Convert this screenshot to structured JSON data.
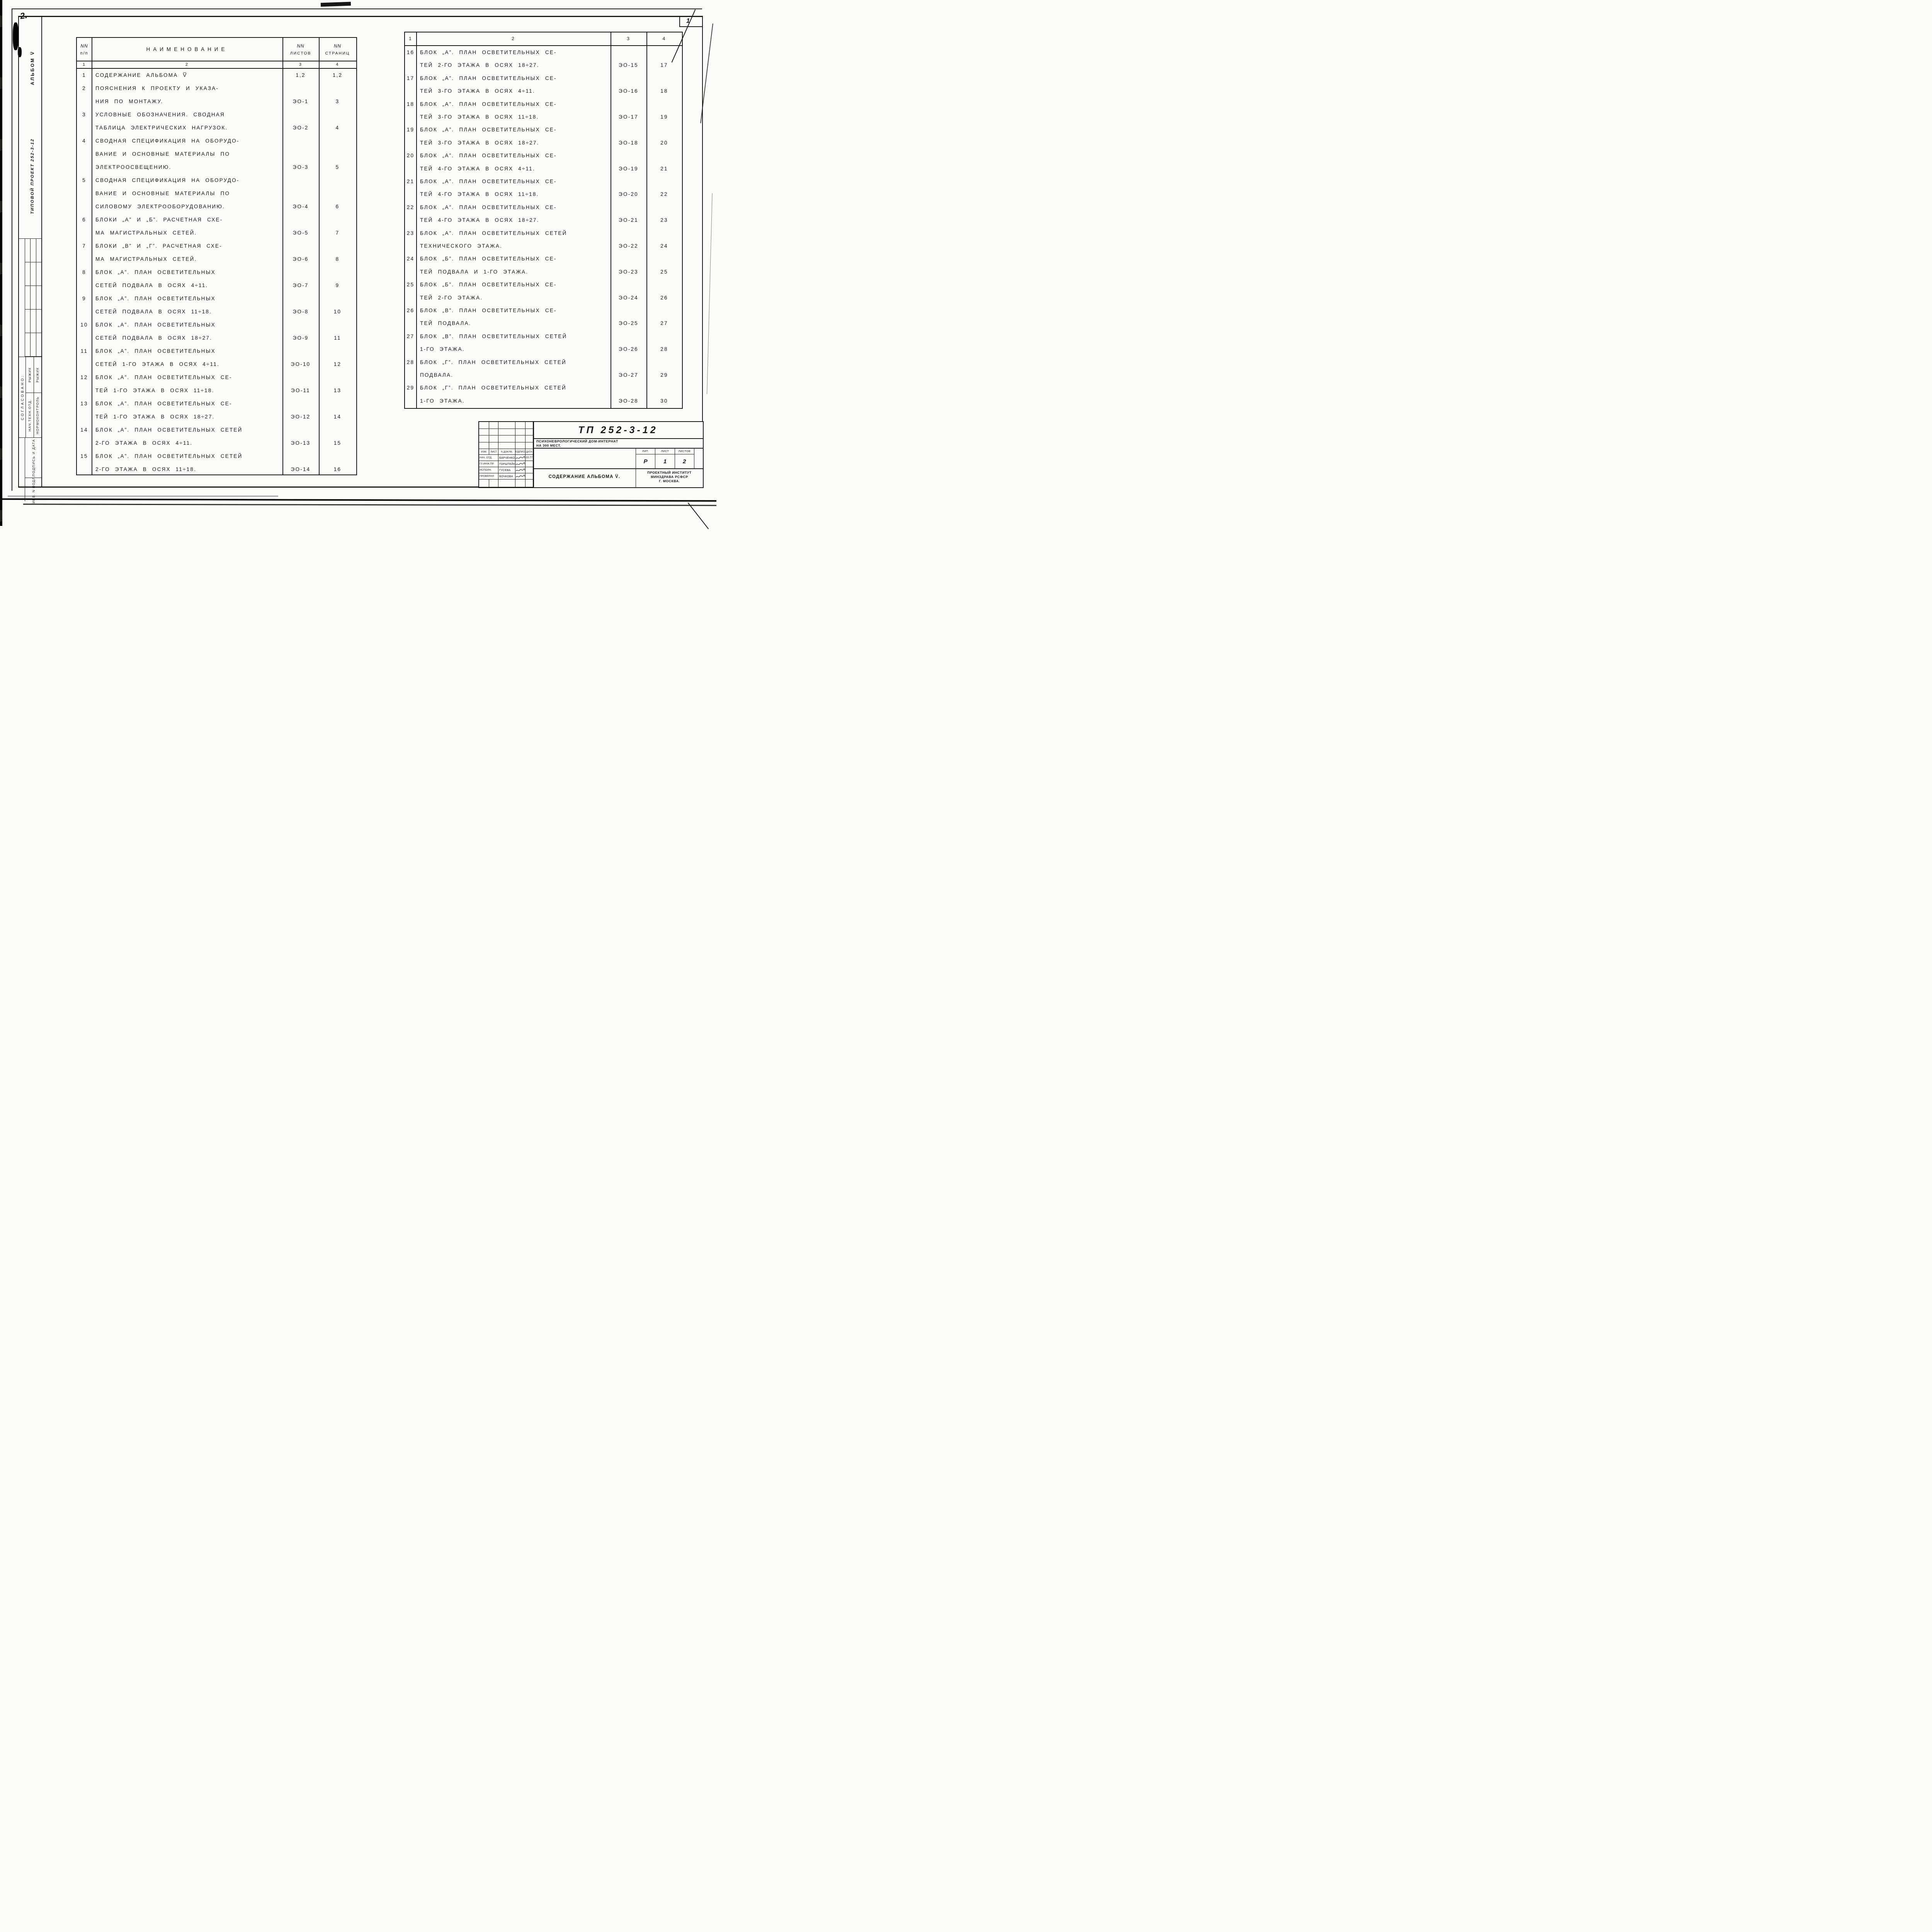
{
  "sheet": {
    "page_number_top_right": "1",
    "handwritten_mark_top_left": "2."
  },
  "sidebar": {
    "album_label": "АЛЬБОМ V̅",
    "project_label": "ТИПОВОЙ ПРОЕКТ 252-3-12",
    "agreed_label": "СОГЛАСОВАНО:",
    "approvals": [
      {
        "role": "НАЧ.ТЕХН.ОТД.",
        "name": "РЫЖИК"
      },
      {
        "role": "НОРМОКОНТРОЛЬ",
        "name": "РЫЖИК"
      }
    ],
    "signature_date_label": "ПОДПИСЬ И ДАТА",
    "inventory_label": "ИНВ. N ПОДЛ."
  },
  "toc": {
    "col_headers": {
      "num_line1": "NN",
      "num_line2": "п/п",
      "name": "НАИМЕНОВАНИЕ",
      "sheets_line1": "NN",
      "sheets_line2": "ЛИСТОВ",
      "pages_line1": "NN",
      "pages_line2": "СТРАНИЦ"
    },
    "col_numbers": [
      "1",
      "2",
      "3",
      "4"
    ],
    "left_rows": [
      {
        "num": "1",
        "lines": [
          "СОДЕРЖАНИЕ АЛЬБОМА  V̅"
        ],
        "sheet": "1,2",
        "page": "1,2"
      },
      {
        "num": "2",
        "lines": [
          "ПОЯСНЕНИЯ К ПРОЕКТУ И УКАЗА-",
          "НИЯ ПО МОНТАЖУ."
        ],
        "sheet": "ЭО-1",
        "page": "3"
      },
      {
        "num": "3",
        "lines": [
          "УСЛОВНЫЕ ОБОЗНАЧЕНИЯ. СВОДНАЯ",
          "ТАБЛИЦА ЭЛЕКТРИЧЕСКИХ НАГРУЗОК."
        ],
        "sheet": "ЭО-2",
        "page": "4"
      },
      {
        "num": "4",
        "lines": [
          "СВОДНАЯ СПЕЦИФИКАЦИЯ НА ОБОРУДО-",
          "ВАНИЕ И ОСНОВНЫЕ МАТЕРИАЛЫ ПО",
          "ЭЛЕКТРООСВЕЩЕНИЮ."
        ],
        "sheet": "ЭО-3",
        "page": "5"
      },
      {
        "num": "5",
        "lines": [
          "СВОДНАЯ СПЕЦИФИКАЦИЯ НА ОБОРУДО-",
          "ВАНИЕ И ОСНОВНЫЕ МАТЕРИАЛЫ ПО",
          "СИЛОВОМУ ЭЛЕКТРООБОРУДОВАНИЮ."
        ],
        "sheet": "ЭО-4",
        "page": "6"
      },
      {
        "num": "6",
        "lines": [
          "БЛОКИ „А” И „Б”. РАСЧЕТНАЯ СХЕ-",
          "МА МАГИСТРАЛЬНЫХ СЕТЕЙ."
        ],
        "sheet": "ЭО-5",
        "page": "7"
      },
      {
        "num": "7",
        "lines": [
          "БЛОКИ „В” И „Г”. РАСЧЕТНАЯ СХЕ-",
          "МА МАГИСТРАЛЬНЫХ СЕТЕЙ."
        ],
        "sheet": "ЭО-6",
        "page": "8"
      },
      {
        "num": "8",
        "lines": [
          "БЛОК „А”. ПЛАН ОСВЕТИТЕЛЬНЫХ",
          "СЕТЕЙ ПОДВАЛА В ОСЯХ 4÷11."
        ],
        "sheet": "ЭО-7",
        "page": "9"
      },
      {
        "num": "9",
        "lines": [
          "БЛОК „А”. ПЛАН ОСВЕТИТЕЛЬНЫХ",
          "СЕТЕЙ ПОДВАЛА В ОСЯХ 11÷18."
        ],
        "sheet": "ЭО-8",
        "page": "10"
      },
      {
        "num": "10",
        "lines": [
          "БЛОК „А”. ПЛАН ОСВЕТИТЕЛЬНЫХ",
          "СЕТЕЙ ПОДВАЛА В ОСЯХ 18÷27."
        ],
        "sheet": "ЭО-9",
        "page": "11"
      },
      {
        "num": "11",
        "lines": [
          "БЛОК „А”. ПЛАН ОСВЕТИТЕЛЬНЫХ",
          "СЕТЕЙ 1-ГО ЭТАЖА В ОСЯХ 4÷11."
        ],
        "sheet": "ЭО-10",
        "page": "12"
      },
      {
        "num": "12",
        "lines": [
          "БЛОК „А”. ПЛАН ОСВЕТИТЕЛЬНЫХ СЕ-",
          "ТЕЙ 1-ГО ЭТАЖА В ОСЯХ 11÷18."
        ],
        "sheet": "ЭО-11",
        "page": "13"
      },
      {
        "num": "13",
        "lines": [
          "БЛОК „А”. ПЛАН ОСВЕТИТЕЛЬНЫХ СЕ-",
          "ТЕЙ 1-ГО ЭТАЖА В ОСЯХ 18÷27."
        ],
        "sheet": "ЭО-12",
        "page": "14"
      },
      {
        "num": "14",
        "lines": [
          "БЛОК „А”. ПЛАН ОСВЕТИТЕЛЬНЫХ СЕТЕЙ",
          "2-ГО ЭТАЖА В ОСЯХ 4÷11."
        ],
        "sheet": "ЭО-13",
        "page": "15"
      },
      {
        "num": "15",
        "lines": [
          "БЛОК „А”. ПЛАН ОСВЕТИТЕЛЬНЫХ СЕТЕЙ",
          "2-ГО ЭТАЖА В ОСЯХ 11÷18."
        ],
        "sheet": "ЭО-14",
        "page": "16"
      }
    ],
    "right_rows": [
      {
        "num": "16",
        "lines": [
          "БЛОК „А”. ПЛАН ОСВЕТИТЕЛЬНЫХ СЕ-",
          "ТЕЙ 2-ГО ЭТАЖА В ОСЯХ 18÷27."
        ],
        "sheet": "ЭО-15",
        "page": "17"
      },
      {
        "num": "17",
        "lines": [
          "БЛОК „А”. ПЛАН ОСВЕТИТЕЛЬНЫХ СЕ-",
          "ТЕЙ 3-ГО ЭТАЖА В ОСЯХ 4÷11."
        ],
        "sheet": "ЭО-16",
        "page": "18"
      },
      {
        "num": "18",
        "lines": [
          "БЛОК „А”. ПЛАН ОСВЕТИТЕЛЬНЫХ СЕ-",
          "ТЕЙ 3-ГО ЭТАЖА В ОСЯХ 11÷18."
        ],
        "sheet": "ЭО-17",
        "page": "19"
      },
      {
        "num": "19",
        "lines": [
          "БЛОК „А”. ПЛАН ОСВЕТИТЕЛЬНЫХ СЕ-",
          "ТЕЙ 3-ГО ЭТАЖА В ОСЯХ 18÷27."
        ],
        "sheet": "ЭО-18",
        "page": "20"
      },
      {
        "num": "20",
        "lines": [
          "БЛОК „А”. ПЛАН ОСВЕТИТЕЛЬНЫХ СЕ-",
          "ТЕЙ 4-ГО ЭТАЖА В ОСЯХ 4÷11."
        ],
        "sheet": "ЭО-19",
        "page": "21"
      },
      {
        "num": "21",
        "lines": [
          "БЛОК „А”. ПЛАН ОСВЕТИТЕЛЬНЫХ СЕ-",
          "ТЕЙ 4-ГО ЭТАЖА В ОСЯХ 11÷18."
        ],
        "sheet": "ЭО-20",
        "page": "22"
      },
      {
        "num": "22",
        "lines": [
          "БЛОК „А”. ПЛАН ОСВЕТИТЕЛЬНЫХ СЕ-",
          "ТЕЙ 4-ГО ЭТАЖА В ОСЯХ 18÷27."
        ],
        "sheet": "ЭО-21",
        "page": "23"
      },
      {
        "num": "23",
        "lines": [
          "БЛОК „А”. ПЛАН ОСВЕТИТЕЛЬНЫХ СЕТЕЙ",
          "ТЕХНИЧЕСКОГО ЭТАЖА."
        ],
        "sheet": "ЭО-22",
        "page": "24"
      },
      {
        "num": "24",
        "lines": [
          "БЛОК „Б”. ПЛАН ОСВЕТИТЕЛЬНЫХ СЕ-",
          "ТЕЙ ПОДВАЛА И 1-ГО ЭТАЖА."
        ],
        "sheet": "ЭО-23",
        "page": "25"
      },
      {
        "num": "25",
        "lines": [
          "БЛОК „Б”. ПЛАН ОСВЕТИТЕЛЬНЫХ СЕ-",
          "ТЕЙ 2-ГО ЭТАЖА."
        ],
        "sheet": "ЭО-24",
        "page": "26"
      },
      {
        "num": "26",
        "lines": [
          "БЛОК „В”. ПЛАН ОСВЕТИТЕЛЬНЫХ СЕ-",
          "ТЕЙ ПОДВАЛА."
        ],
        "sheet": "ЭО-25",
        "page": "27"
      },
      {
        "num": "27",
        "lines": [
          "БЛОК „В”. ПЛАН ОСВЕТИТЕЛЬНЫХ СЕТЕЙ",
          "1-ГО ЭТАЖА."
        ],
        "sheet": "ЭО-26",
        "page": "28"
      },
      {
        "num": "28",
        "lines": [
          "БЛОК „Г”. ПЛАН ОСВЕТИТЕЛЬНЫХ СЕТЕЙ",
          "ПОДВАЛА."
        ],
        "sheet": "ЭО-27",
        "page": "29"
      },
      {
        "num": "29",
        "lines": [
          "БЛОК „Г”. ПЛАН ОСВЕТИТЕЛЬНЫХ СЕТЕЙ",
          "1-ГО ЭТАЖА."
        ],
        "sheet": "ЭО-28",
        "page": "30"
      }
    ]
  },
  "title_block": {
    "doc_number": "ТП 252-3-12",
    "object_lines": [
      "ПСИХОНЕВРОЛОГИЧЕСКИЙ ДОМ-ИНТЕРНАТ",
      "НА 300 МЕСТ."
    ],
    "rev_headers": [
      "ИЗМ.",
      "ЛИСТ",
      "N ДОКУМ.",
      "ПОДПИСЬ",
      "ДАТА"
    ],
    "signature_rows": [
      {
        "role": "НАЧ. ОТД.",
        "name": "БАРЧЕНКОВ",
        "date": "10.77"
      },
      {
        "role": "ГЛ.ИНЖ.ПР.",
        "name": "ГОРШТЕЙН",
        "date": ""
      },
      {
        "role": "ИСПОЛН.",
        "name": "ГУСЕВА",
        "date": ""
      },
      {
        "role": "ПРОВЕРИЛ",
        "name": "БОЧКОВА",
        "date": ""
      }
    ],
    "lit_headers": [
      "ЛИТ.",
      "ЛИСТ",
      "ЛИСТОВ"
    ],
    "lit_values": [
      "Р",
      "1",
      "2"
    ],
    "sheet_title": "СОДЕРЖАНИЕ АЛЬБОМА V̅.",
    "institute_lines": [
      "ПРОЕКТНЫЙ ИНСТИТУТ",
      "МИНЗДРАВА РСФСР",
      "Г. МОСКВА."
    ]
  }
}
